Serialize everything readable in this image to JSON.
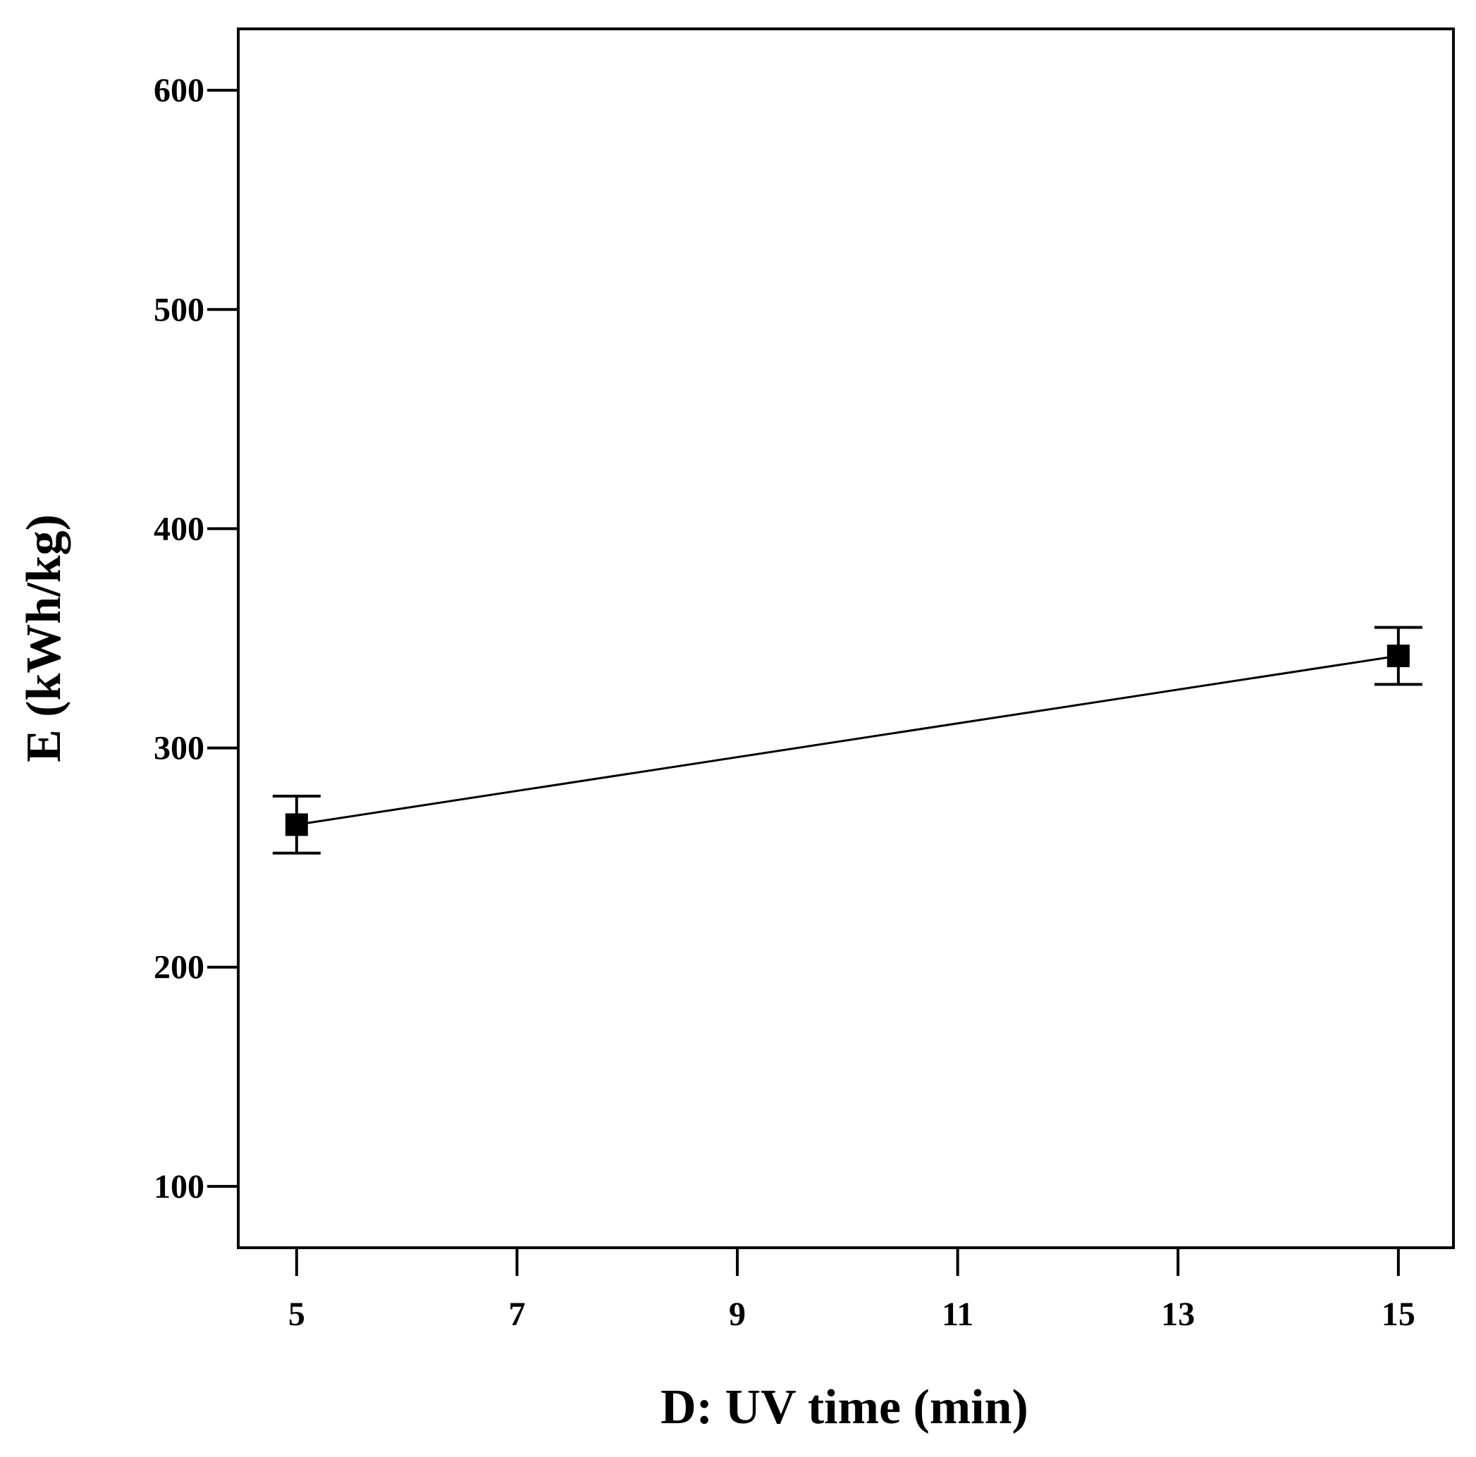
{
  "chart_data": {
    "type": "line",
    "title": "",
    "xlabel": "D: UV time (min)",
    "ylabel": "E (kWh/kg)",
    "xlim": [
      4.47,
      15.5
    ],
    "ylim": [
      72,
      628
    ],
    "xticks": [
      5,
      7,
      9,
      11,
      13,
      15
    ],
    "yticks": [
      100,
      200,
      300,
      400,
      500,
      600
    ],
    "grid": false,
    "legend": "none",
    "series": [
      {
        "x": [
          5,
          15
        ],
        "y": [
          265,
          342
        ],
        "error_low": [
          252,
          329
        ],
        "error_high": [
          278,
          355
        ],
        "marker": "square",
        "color": "#000000"
      }
    ]
  }
}
